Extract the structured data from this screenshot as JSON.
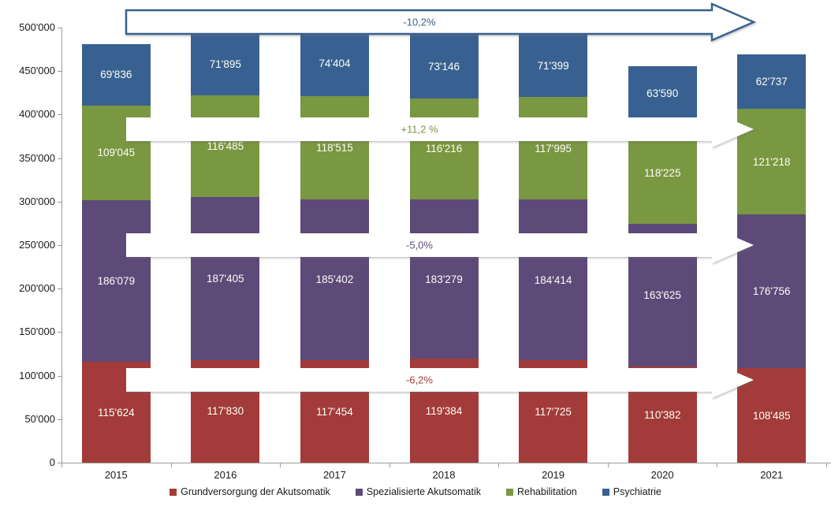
{
  "chart_data": {
    "type": "bar",
    "stacked": true,
    "title": "",
    "xlabel": "",
    "ylabel": "",
    "categories": [
      "2015",
      "2016",
      "2017",
      "2018",
      "2019",
      "2020",
      "2021"
    ],
    "series": [
      {
        "name": "Grundversorgung der Akutsomatik",
        "color": "#A23B39",
        "values": [
          115624,
          117830,
          117454,
          119384,
          117725,
          110382,
          108485
        ]
      },
      {
        "name": "Spezialisierte Akutsomatik",
        "color": "#5D4A78",
        "values": [
          186079,
          187405,
          185402,
          183279,
          184414,
          163625,
          176756
        ]
      },
      {
        "name": "Rehabilitation",
        "color": "#7A9741",
        "values": [
          109045,
          116485,
          118515,
          116216,
          117995,
          118225,
          121218
        ]
      },
      {
        "name": "Psychiatrie",
        "color": "#386191",
        "values": [
          69836,
          71895,
          74404,
          73146,
          71399,
          63590,
          62737
        ]
      }
    ],
    "annotations": [
      {
        "label": "-10,2%",
        "series": "Psychiatrie",
        "color": "#386191",
        "style": "outlined-white",
        "y_value": 506000
      },
      {
        "label": "+11,2 %",
        "series": "Rehabilitation",
        "color": "#7A9741",
        "style": "filled-white",
        "y_value": 383000
      },
      {
        "label": "-5,0%",
        "series": "Spezialisierte Akutsomatik",
        "color": "#5D4A78",
        "style": "filled-white",
        "y_value": 250000
      },
      {
        "label": "-6,2%",
        "series": "Grundversorgung der Akutsomatik",
        "color": "#A23B39",
        "style": "filled-white",
        "y_value": 95000
      }
    ],
    "ylim": [
      0,
      500000
    ],
    "ytick_step": 50000,
    "ytick_labels": [
      "0",
      "50'000",
      "100'000",
      "150'000",
      "200'000",
      "250'000",
      "300'000",
      "350'000",
      "400'000",
      "450'000",
      "500'000"
    ],
    "value_label_format": "thousands-apostrophe",
    "grid": false,
    "legend_position": "bottom"
  }
}
